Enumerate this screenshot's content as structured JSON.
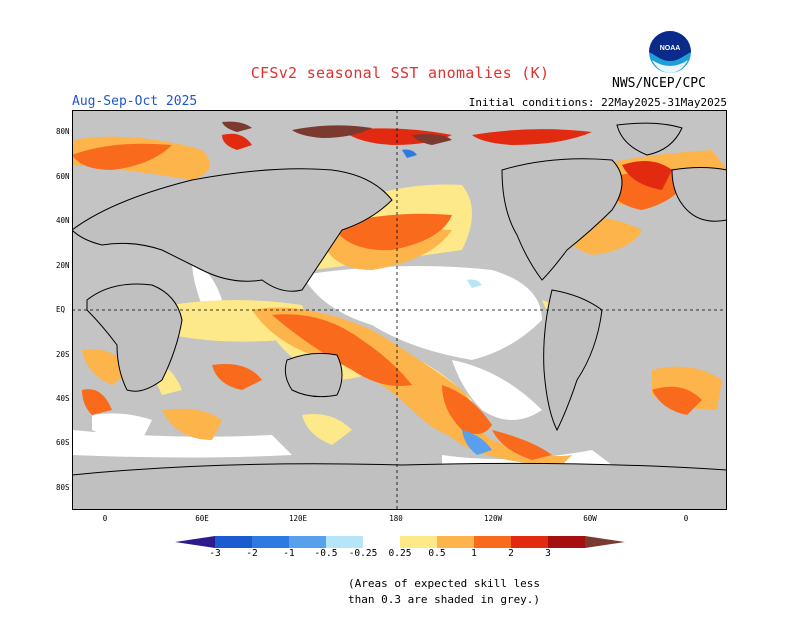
{
  "header": {
    "title": "CFSv2 seasonal SST anomalies (K)",
    "period": "Aug-Sep-Oct 2025",
    "initial_conditions": "Initial conditions: 22May2025-31May2025",
    "agency": "NWS/NCEP/CPC",
    "logo_text": "NOAA"
  },
  "map": {
    "lat_labels": [
      "80N",
      "60N",
      "40N",
      "20N",
      "EQ",
      "20S",
      "40S",
      "60S",
      "80S"
    ],
    "lon_labels": [
      "0",
      "60E",
      "120E",
      "180",
      "120W",
      "60W",
      "0"
    ],
    "colors": {
      "land": "#c0c0c0",
      "skill_mask": "#c0c0c0",
      "coast": "#000000"
    }
  },
  "legend": {
    "tick_labels": [
      "-3",
      "-2",
      "-1",
      "-0.5",
      "-0.25",
      "0.25",
      "0.5",
      "1",
      "2",
      "3"
    ],
    "colors": [
      "#2b1b8c",
      "#1a5bd0",
      "#2f7ae0",
      "#58a0ec",
      "#b5e5f7",
      "#ffffff",
      "#fde88a",
      "#fdb44a",
      "#f96a1c",
      "#e22a10",
      "#a50f0f",
      "#7a3a30"
    ]
  },
  "footnote": {
    "line1": "(Areas of expected skill less",
    "line2": "than 0.3 are shaded in grey.)"
  }
}
